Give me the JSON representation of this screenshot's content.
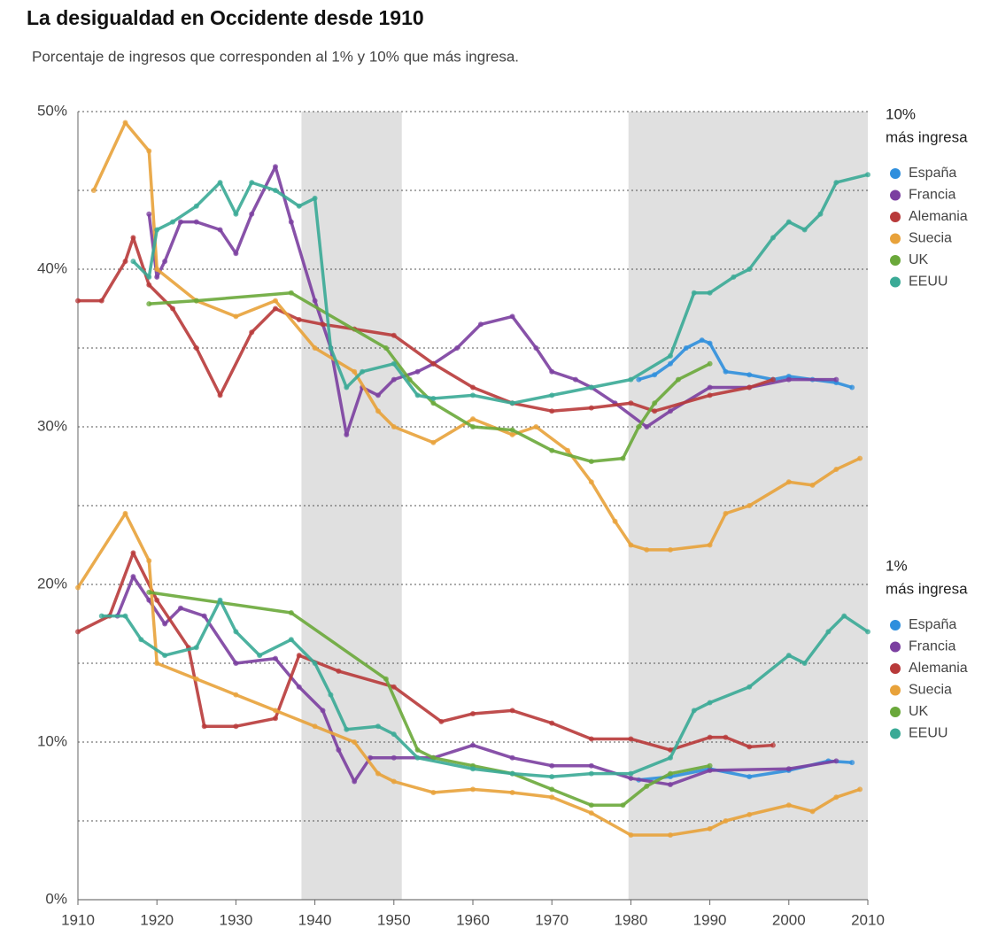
{
  "chart_data": {
    "type": "line",
    "title": "La desigualdad en Occidente desde 1910",
    "subtitle": "Porcentaje de ingresos que corresponden al 1% y 10% que más ingresa.",
    "xlim": [
      1910,
      2010
    ],
    "xticks": [
      1910,
      1920,
      1930,
      1940,
      1950,
      1960,
      1970,
      1980,
      1990,
      2000,
      2010
    ],
    "ylim": [
      0,
      50
    ],
    "yticks": [
      {
        "value": 0,
        "label": "0%"
      },
      {
        "value": 10,
        "label": "10%"
      },
      {
        "value": 20,
        "label": "20%"
      },
      {
        "value": 30,
        "label": "30%"
      },
      {
        "value": 40,
        "label": "40%"
      },
      {
        "value": 50,
        "label": "50%"
      }
    ],
    "y_minor_grid": [
      5,
      15,
      25,
      35,
      45
    ],
    "grid": true,
    "shaded_ranges": [
      [
        1938.3,
        1951
      ],
      [
        1979.7,
        2010
      ]
    ],
    "groups": [
      {
        "label": [
          "10%",
          "más ingresa"
        ],
        "series": [
          {
            "name": "España",
            "color": "#2f8fdd",
            "x": [
              1981,
              1983,
              1985,
              1987,
              1989,
              1990,
              1992,
              1995,
              1998,
              2000,
              2003,
              2006,
              2008
            ],
            "values": [
              33,
              33.3,
              34,
              35,
              35.5,
              35.3,
              33.5,
              33.3,
              33,
              33.2,
              33,
              32.8,
              32.5
            ]
          },
          {
            "name": "Francia",
            "color": "#7b3fa0",
            "x": [
              1919,
              1920,
              1921,
              1923,
              1925,
              1928,
              1930,
              1932,
              1935,
              1937,
              1940,
              1942,
              1944,
              1946,
              1948,
              1950,
              1953,
              1955,
              1958,
              1961,
              1965,
              1968,
              1970,
              1973,
              1975,
              1978,
              1982,
              1985,
              1990,
              1995,
              2000,
              2006
            ],
            "values": [
              43.5,
              39.5,
              40.5,
              43,
              43,
              42.5,
              41,
              43.5,
              46.5,
              43,
              38,
              35,
              29.5,
              32.5,
              32,
              33,
              33.5,
              34,
              35,
              36.5,
              37,
              35,
              33.5,
              33,
              32.5,
              31.5,
              30,
              31,
              32.5,
              32.5,
              33,
              33
            ]
          },
          {
            "name": "Alemania",
            "color": "#b83a3a",
            "x": [
              1910,
              1913,
              1916,
              1917,
              1919,
              1922,
              1925,
              1928,
              1932,
              1935,
              1938,
              1941,
              1945,
              1950,
              1955,
              1960,
              1965,
              1970,
              1975,
              1980,
              1983,
              1990,
              1995,
              1998
            ],
            "values": [
              38,
              38,
              40.5,
              42,
              39,
              37.5,
              35,
              32,
              36,
              37.5,
              36.8,
              36.5,
              36.2,
              35.8,
              34,
              32.5,
              31.5,
              31,
              31.2,
              31.5,
              31,
              32,
              32.5,
              33
            ]
          },
          {
            "name": "Suecia",
            "color": "#e8a23a",
            "x": [
              1912,
              1916,
              1919,
              1920,
              1925,
              1930,
              1935,
              1940,
              1945,
              1948,
              1950,
              1955,
              1960,
              1965,
              1968,
              1972,
              1975,
              1978,
              1980,
              1982,
              1985,
              1990,
              1992,
              1995,
              2000,
              2003,
              2006,
              2009
            ],
            "values": [
              45,
              49.3,
              47.5,
              40,
              38,
              37,
              38,
              35,
              33.5,
              31,
              30,
              29,
              30.5,
              29.5,
              30,
              28.5,
              26.5,
              24,
              22.5,
              22.2,
              22.2,
              22.5,
              24.5,
              25,
              26.5,
              26.3,
              27.3,
              28
            ]
          },
          {
            "name": "UK",
            "color": "#6aa83a",
            "x": [
              1919,
              1925,
              1937,
              1949,
              1952,
              1955,
              1960,
              1965,
              1970,
              1975,
              1979,
              1981,
              1983,
              1986,
              1990
            ],
            "values": [
              37.8,
              38,
              38.5,
              35,
              33,
              31.5,
              30,
              29.8,
              28.5,
              27.8,
              28,
              30,
              31.5,
              33,
              34
            ]
          },
          {
            "name": "EEUU",
            "color": "#3aaa96",
            "x": [
              1917,
              1919,
              1920,
              1922,
              1925,
              1928,
              1930,
              1932,
              1935,
              1938,
              1940,
              1942,
              1944,
              1946,
              1950,
              1953,
              1955,
              1960,
              1965,
              1970,
              1975,
              1980,
              1985,
              1988,
              1990,
              1993,
              1995,
              1998,
              2000,
              2002,
              2004,
              2006,
              2010
            ],
            "values": [
              40.5,
              39.5,
              42.5,
              43,
              44,
              45.5,
              43.5,
              45.5,
              45,
              44,
              44.5,
              35,
              32.5,
              33.5,
              34,
              32,
              31.8,
              32,
              31.5,
              32,
              32.5,
              33,
              34.5,
              38.5,
              38.5,
              39.5,
              40,
              42,
              43,
              42.5,
              43.5,
              45.5,
              46
            ]
          }
        ]
      },
      {
        "label": [
          "1%",
          "más ingresa"
        ],
        "series": [
          {
            "name": "España",
            "color": "#2f8fdd",
            "x": [
              1981,
              1985,
              1990,
              1995,
              2000,
              2005,
              2008
            ],
            "values": [
              7.6,
              7.8,
              8.3,
              7.8,
              8.2,
              8.8,
              8.7
            ]
          },
          {
            "name": "Francia",
            "color": "#7b3fa0",
            "x": [
              1915,
              1917,
              1919,
              1921,
              1923,
              1926,
              1930,
              1935,
              1938,
              1941,
              1943,
              1945,
              1947,
              1950,
              1955,
              1960,
              1965,
              1970,
              1975,
              1980,
              1985,
              1990,
              2000,
              2006
            ],
            "values": [
              18,
              20.5,
              19,
              17.5,
              18.5,
              18,
              15,
              15.3,
              13.5,
              12,
              9.5,
              7.5,
              9,
              9,
              9,
              9.8,
              9,
              8.5,
              8.5,
              7.7,
              7.3,
              8.2,
              8.3,
              8.8
            ]
          },
          {
            "name": "Alemania",
            "color": "#b83a3a",
            "x": [
              1910,
              1914,
              1917,
              1920,
              1924,
              1926,
              1930,
              1935,
              1938,
              1943,
              1950,
              1956,
              1960,
              1965,
              1970,
              1975,
              1980,
              1985,
              1990,
              1992,
              1995,
              1998
            ],
            "values": [
              17,
              18,
              22,
              19,
              16,
              11,
              11,
              11.5,
              15.5,
              14.5,
              13.5,
              11.3,
              11.8,
              12,
              11.2,
              10.2,
              10.2,
              9.5,
              10.3,
              10.3,
              9.7,
              9.8
            ]
          },
          {
            "name": "Suecia",
            "color": "#e8a23a",
            "x": [
              1910,
              1916,
              1919,
              1920,
              1925,
              1930,
              1935,
              1940,
              1945,
              1948,
              1950,
              1955,
              1960,
              1965,
              1970,
              1975,
              1980,
              1985,
              1990,
              1992,
              1995,
              2000,
              2003,
              2006,
              2009
            ],
            "values": [
              19.8,
              24.5,
              21.5,
              15,
              14,
              13,
              12,
              11,
              10,
              8,
              7.5,
              6.8,
              7,
              6.8,
              6.5,
              5.5,
              4.1,
              4.1,
              4.5,
              5,
              5.4,
              6,
              5.6,
              6.5,
              7
            ]
          },
          {
            "name": "UK",
            "color": "#6aa83a",
            "x": [
              1919,
              1937,
              1949,
              1953,
              1955,
              1960,
              1965,
              1970,
              1975,
              1979,
              1982,
              1985,
              1990
            ],
            "values": [
              19.5,
              18.2,
              14,
              9.5,
              9,
              8.5,
              8,
              7,
              6,
              6,
              7.2,
              8,
              8.5
            ]
          },
          {
            "name": "EEUU",
            "color": "#3aaa96",
            "x": [
              1913,
              1916,
              1918,
              1921,
              1925,
              1928,
              1930,
              1933,
              1937,
              1940,
              1942,
              1944,
              1948,
              1950,
              1953,
              1960,
              1965,
              1970,
              1975,
              1980,
              1985,
              1988,
              1990,
              1995,
              2000,
              2002,
              2005,
              2007,
              2010
            ],
            "values": [
              18,
              18,
              16.5,
              15.5,
              16,
              19,
              17,
              15.5,
              16.5,
              15,
              13,
              10.8,
              11,
              10.5,
              9,
              8.3,
              8,
              7.8,
              8,
              8,
              9,
              12,
              12.5,
              13.5,
              15.5,
              15,
              17,
              18,
              17
            ]
          }
        ]
      }
    ]
  }
}
